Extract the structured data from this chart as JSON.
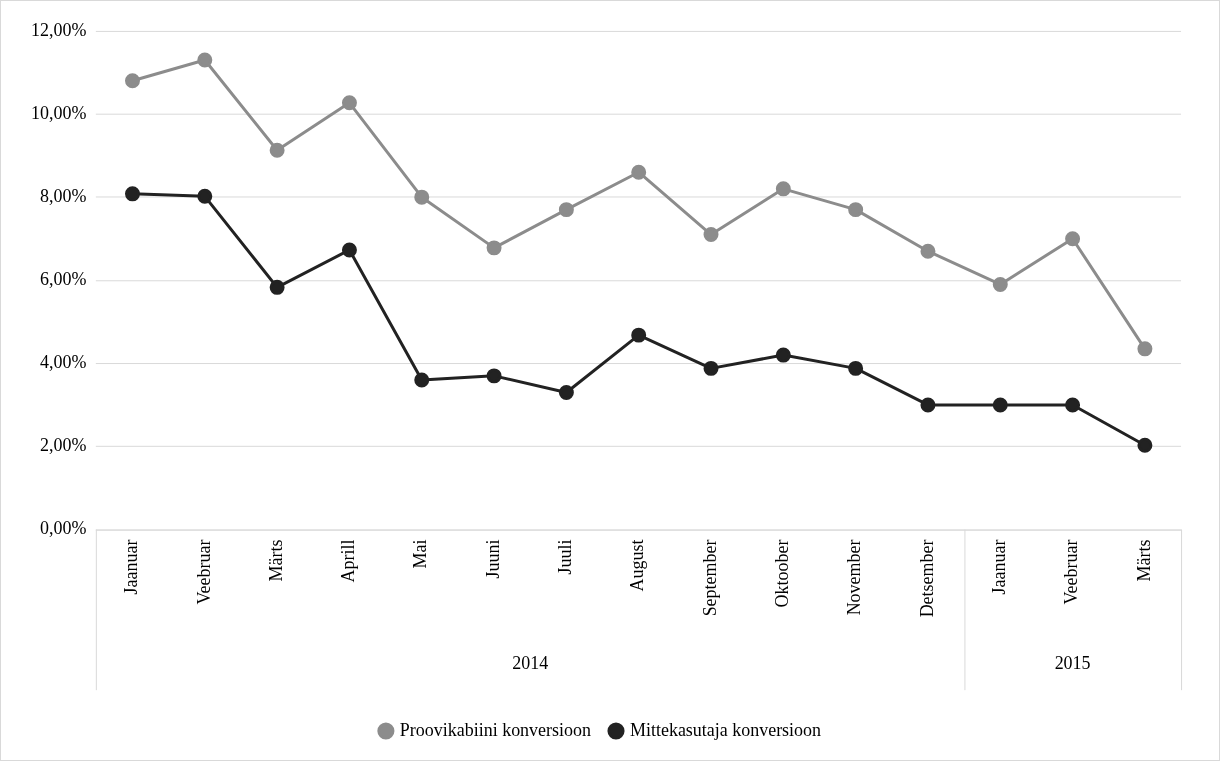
{
  "chart_data": {
    "type": "line",
    "categories": [
      "Jaanuar",
      "Veebruar",
      "Märts",
      "Aprill",
      "Mai",
      "Juuni",
      "Juuli",
      "August",
      "September",
      "Oktoober",
      "November",
      "Detsember",
      "Jaanuar",
      "Veebruar",
      "Märts"
    ],
    "series": [
      {
        "name": "Proovikabiini konversioon",
        "color": "#8c8c8c",
        "values": [
          10.8,
          11.3,
          9.13,
          10.27,
          8.0,
          6.78,
          7.7,
          8.6,
          7.1,
          8.2,
          7.7,
          6.7,
          5.9,
          7.0,
          4.35
        ]
      },
      {
        "name": "Mittekasutaja konversioon",
        "color": "#222222",
        "values": [
          8.08,
          8.02,
          5.83,
          6.73,
          3.6,
          3.7,
          3.3,
          4.68,
          3.88,
          4.2,
          3.88,
          3.0,
          3.0,
          3.0,
          2.03
        ]
      }
    ],
    "ylim": [
      0,
      12
    ],
    "yticks": [
      {
        "value": 0,
        "label": "0,00%"
      },
      {
        "value": 2,
        "label": "2,00%"
      },
      {
        "value": 4,
        "label": "4,00%"
      },
      {
        "value": 6,
        "label": "6,00%"
      },
      {
        "value": 8,
        "label": "8,00%"
      },
      {
        "value": 10,
        "label": "10,00%"
      },
      {
        "value": 12,
        "label": "12,00%"
      }
    ],
    "annotations": [
      "2014",
      "2015"
    ],
    "grid": "y",
    "legend": "bottom",
    "marker": "circle",
    "line_style": "solid"
  }
}
